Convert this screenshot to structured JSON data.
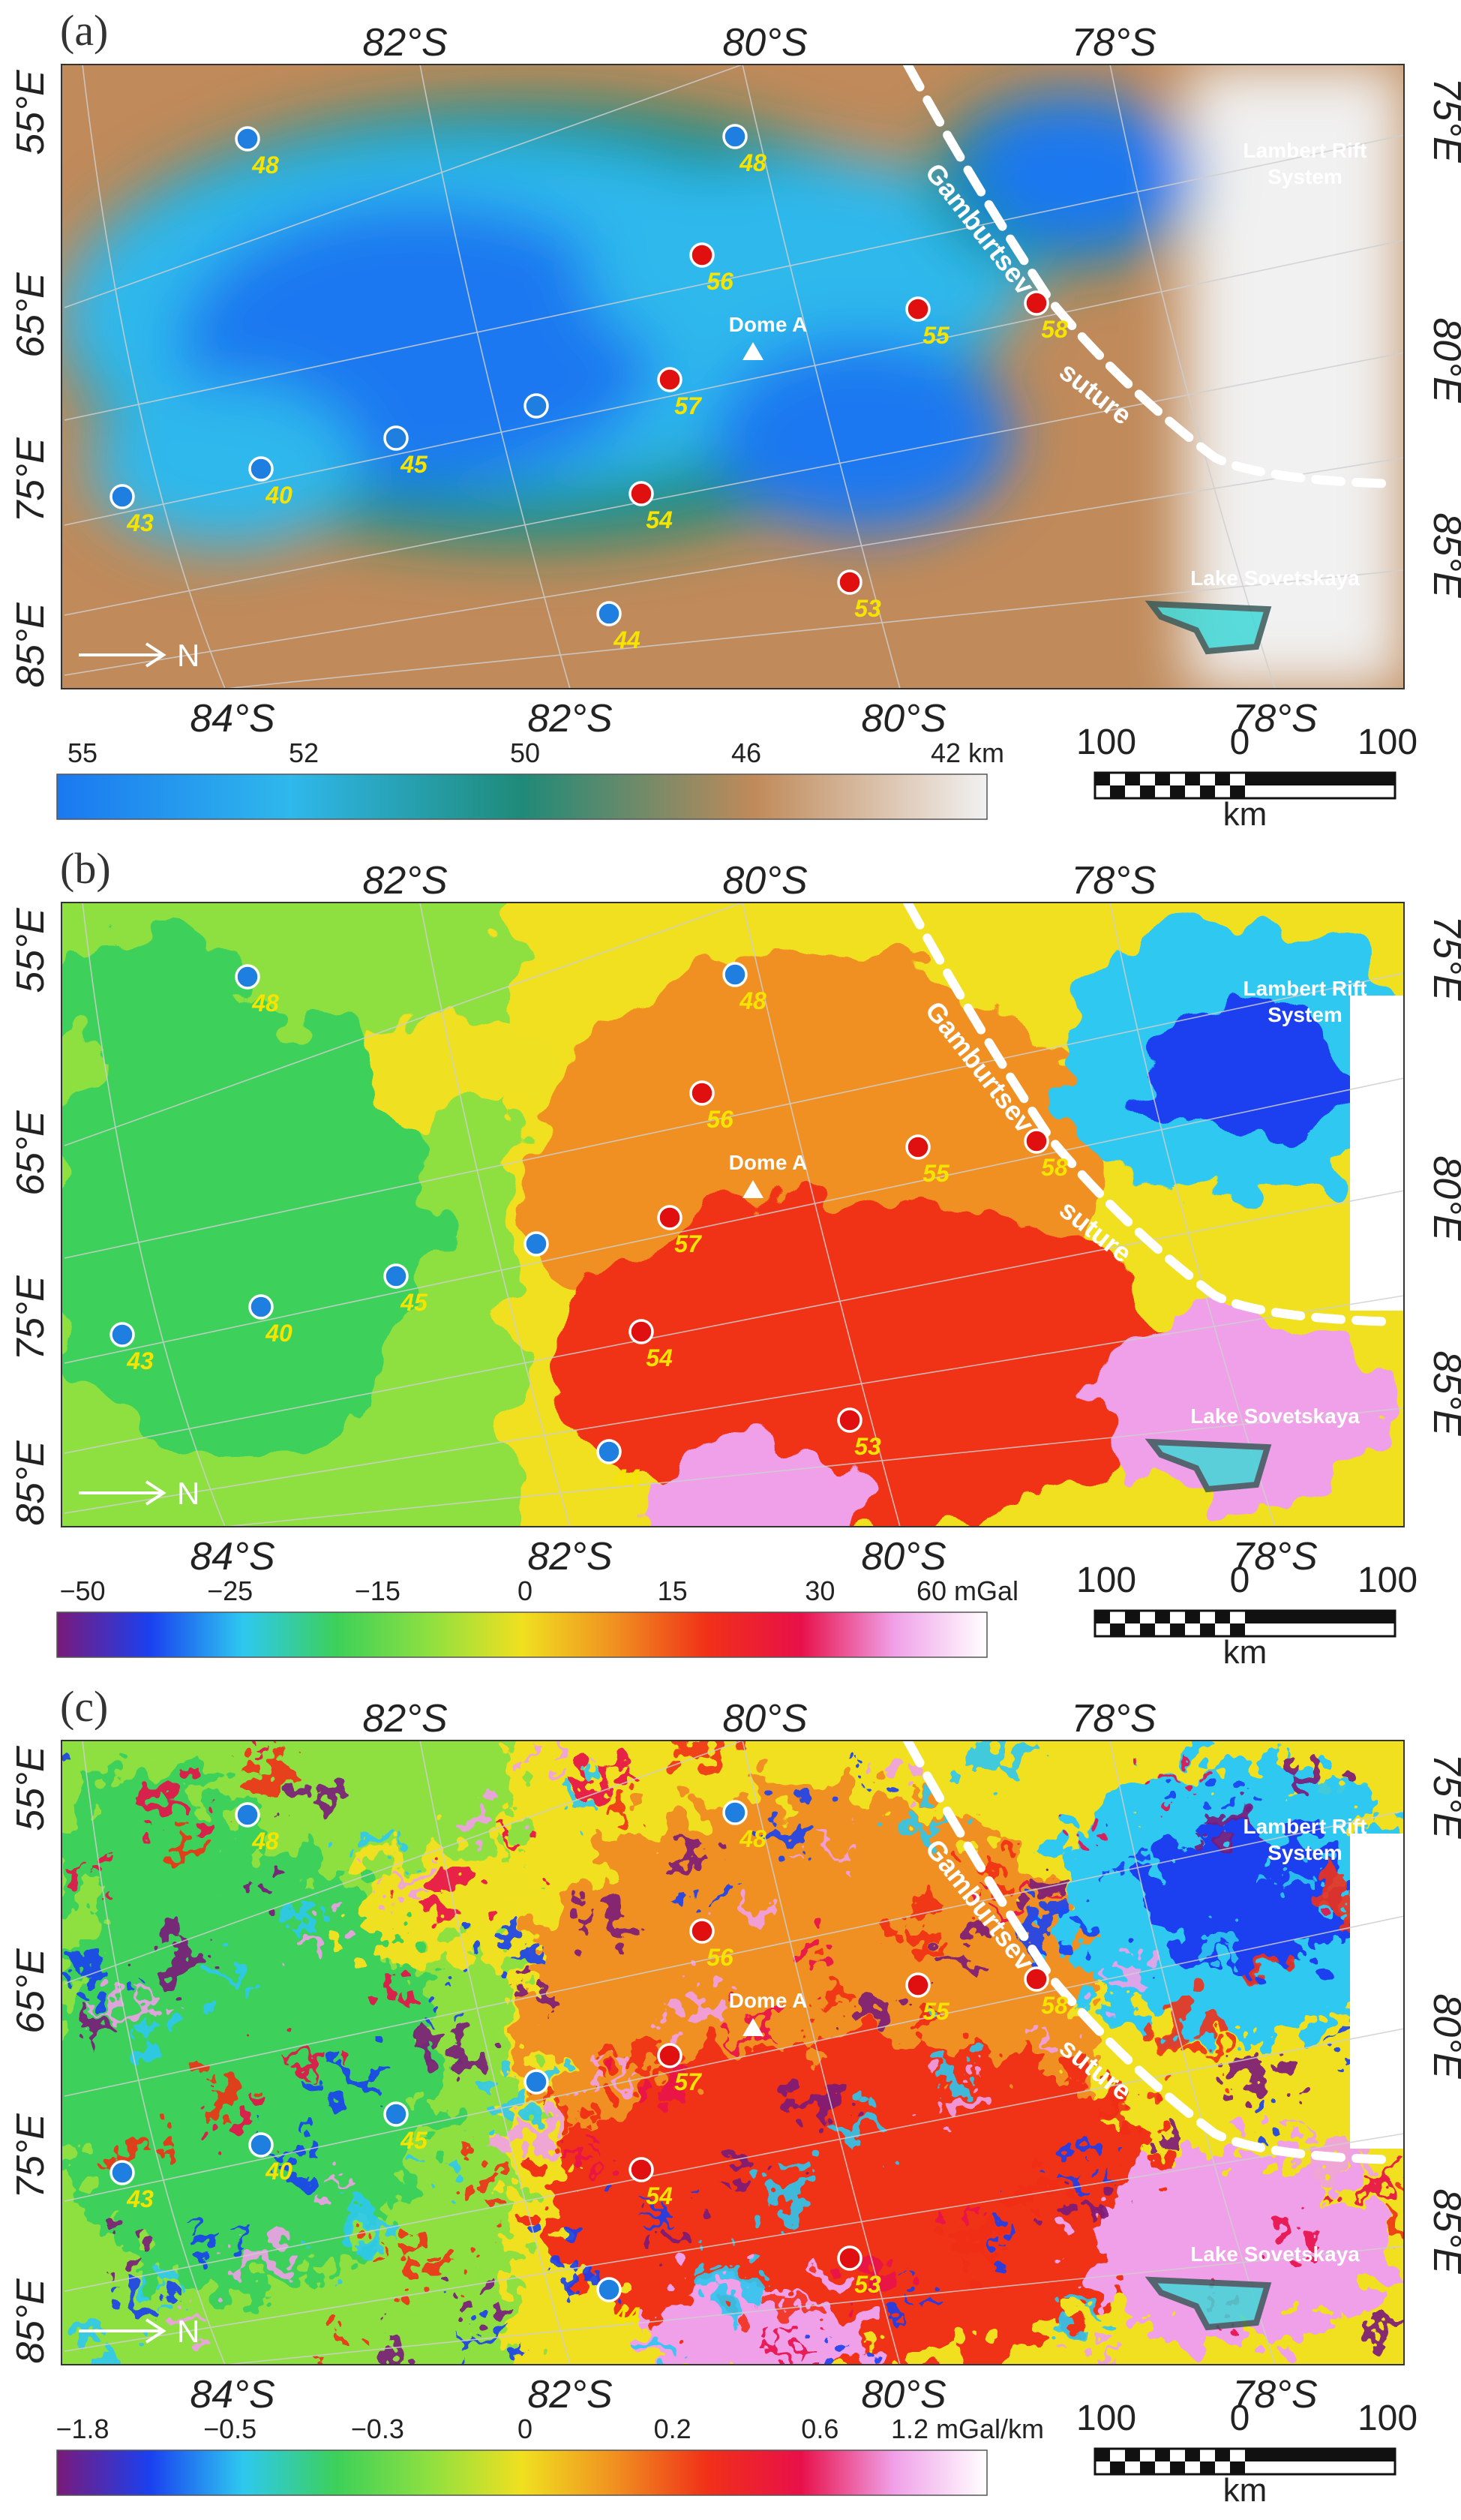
{
  "panels": [
    {
      "id": "a",
      "panel_label": "(a)",
      "map_style": "smooth",
      "colorbar": {
        "tick_labels": [
          "55",
          "52",
          "50",
          "46",
          "42 km"
        ],
        "colors": [
          "#1a78f0",
          "#2fb8ec",
          "#1f8a78",
          "#c08a5a",
          "#f1f1f1"
        ]
      }
    },
    {
      "id": "b",
      "panel_label": "(b)",
      "map_style": "textured",
      "colorbar": {
        "tick_labels": [
          "−50",
          "−25",
          "−15",
          "0",
          "15",
          "30",
          "60 mGal"
        ],
        "colors": [
          "#7a1a7a",
          "#1a40f0",
          "#2ec8f0",
          "#3cd05a",
          "#8ee040",
          "#f0e020",
          "#f09020",
          "#f03018",
          "#e8104a",
          "#f0a0e8",
          "#ffffff"
        ]
      }
    },
    {
      "id": "c",
      "panel_label": "(c)",
      "map_style": "textured",
      "colorbar": {
        "tick_labels": [
          "−1.8",
          "−0.5",
          "−0.3",
          "0",
          "0.2",
          "0.6",
          "1.2 mGal/km"
        ],
        "colors": [
          "#7a1a7a",
          "#1a40f0",
          "#2ec8f0",
          "#3cd05a",
          "#8ee040",
          "#f0e020",
          "#f09020",
          "#f03018",
          "#e8104a",
          "#f0a0e8",
          "#ffffff"
        ]
      }
    }
  ],
  "lat_top": [
    "82°S",
    "80°S",
    "78°S"
  ],
  "lat_bottom": [
    "84°S",
    "82°S",
    "80°S",
    "78°S"
  ],
  "lon_left": [
    "55°E",
    "65°E",
    "75°E",
    "85°E"
  ],
  "lon_right": [
    "75°E",
    "80°E",
    "85°E"
  ],
  "features": {
    "dome": "Dome A",
    "rift": [
      "Lambert Rift",
      "System"
    ],
    "lake": "Lake Sovetskaya",
    "suture": [
      "Gamburtsev",
      "suture"
    ],
    "north": "N"
  },
  "stations": [
    {
      "label": "48",
      "color": "blue"
    },
    {
      "label": "48",
      "color": "blue"
    },
    {
      "label": "56",
      "color": "red"
    },
    {
      "label": "55",
      "color": "red"
    },
    {
      "label": "58",
      "color": "red"
    },
    {
      "label": "57",
      "color": "red"
    },
    {
      "label": "",
      "color": "blue"
    },
    {
      "label": "45",
      "color": "blue"
    },
    {
      "label": "40",
      "color": "blue"
    },
    {
      "label": "43",
      "color": "blue"
    },
    {
      "label": "54",
      "color": "red"
    },
    {
      "label": "53",
      "color": "red"
    },
    {
      "label": "44",
      "color": "blue"
    }
  ],
  "scalebar": {
    "left": "100",
    "middle": "0",
    "right": "100",
    "unit": "km"
  },
  "colors": {
    "station_blue": "#1e7fe0",
    "station_red": "#e01010",
    "station_label": "#f5e400",
    "feature_text": "#ffffff"
  }
}
